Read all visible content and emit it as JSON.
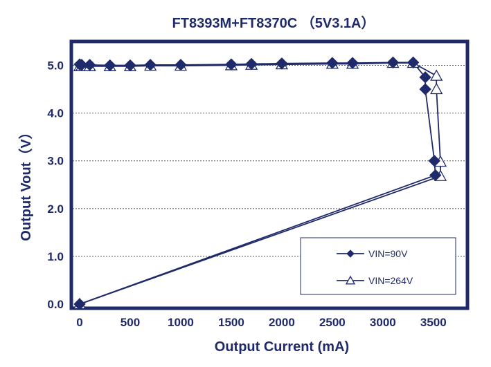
{
  "chart_data": {
    "type": "line",
    "title": "FT8393M+FT8370C （5V3.1A）",
    "xlabel": "Output Current (mA)",
    "ylabel": "Output Vout（V）",
    "xlim": [
      0,
      3700
    ],
    "ylim": [
      0,
      5.5
    ],
    "x_ticks": [
      "0",
      "500",
      "1000",
      "1500",
      "2000",
      "2500",
      "3000",
      "3500"
    ],
    "y_ticks": [
      "0.0",
      "1.0",
      "2.0",
      "3.0",
      "4.0",
      "5.0"
    ],
    "grid": "horizontal dashed",
    "legend_position": "bottom-right",
    "colors": {
      "series": "#1f2a6b",
      "frame": "#1f2a6b",
      "grid": "#555555"
    },
    "series": [
      {
        "name": "VIN=90V",
        "marker": "diamond",
        "points": [
          [
            0,
            5.02
          ],
          [
            20,
            5.01
          ],
          [
            100,
            5.01
          ],
          [
            300,
            5.0
          ],
          [
            500,
            5.0
          ],
          [
            700,
            5.01
          ],
          [
            1000,
            5.01
          ],
          [
            1500,
            5.02
          ],
          [
            1700,
            5.03
          ],
          [
            2000,
            5.04
          ],
          [
            2500,
            5.05
          ],
          [
            2700,
            5.05
          ],
          [
            3100,
            5.06
          ],
          [
            3300,
            5.06
          ],
          [
            3420,
            4.75
          ],
          [
            3420,
            4.5
          ],
          [
            3510,
            3.0
          ],
          [
            3520,
            2.7
          ],
          [
            0,
            0.0
          ]
        ]
      },
      {
        "name": "VIN=264V",
        "marker": "triangle",
        "points": [
          [
            0,
            4.98
          ],
          [
            20,
            4.98
          ],
          [
            100,
            4.98
          ],
          [
            300,
            4.98
          ],
          [
            500,
            4.98
          ],
          [
            700,
            4.99
          ],
          [
            1000,
            4.99
          ],
          [
            1500,
            5.0
          ],
          [
            1700,
            5.01
          ],
          [
            2000,
            5.02
          ],
          [
            2500,
            5.03
          ],
          [
            2700,
            5.03
          ],
          [
            3100,
            5.05
          ],
          [
            3300,
            5.05
          ],
          [
            3530,
            4.78
          ],
          [
            3530,
            4.5
          ],
          [
            3570,
            2.98
          ],
          [
            3570,
            2.68
          ],
          [
            0,
            0.0
          ]
        ]
      }
    ]
  }
}
